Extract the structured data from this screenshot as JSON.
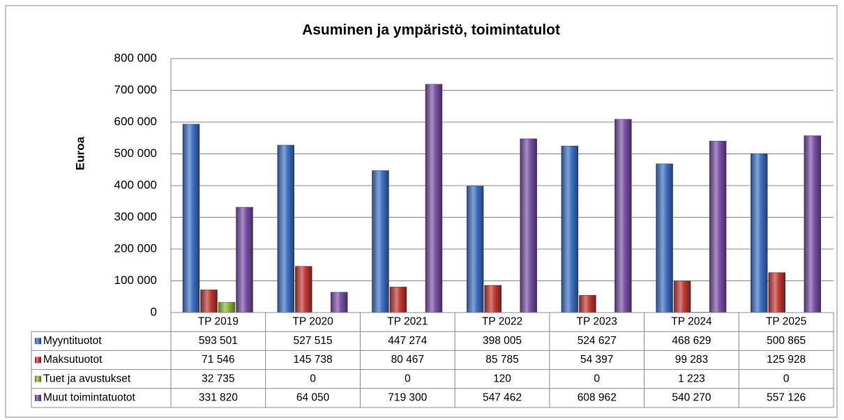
{
  "chart_data": {
    "type": "bar",
    "title": "Asuminen ja ympäristö, toimintatulot",
    "y_label": "Euroa",
    "categories": [
      "TP 2019",
      "TP 2020",
      "TP 2021",
      "TP 2022",
      "TP 2023",
      "TP 2024",
      "TP 2025"
    ],
    "series": [
      {
        "name": "Myyntituotot",
        "color": "#3f72c6",
        "values": [
          593501,
          527515,
          447274,
          398005,
          524627,
          468629,
          500865
        ],
        "value_labels": [
          "593 501",
          "527 515",
          "447 274",
          "398 005",
          "524 627",
          "468 629",
          "500 865"
        ]
      },
      {
        "name": "Maksutuotot",
        "color": "#c23a35",
        "values": [
          71546,
          145738,
          80467,
          85785,
          54397,
          99283,
          125928
        ],
        "value_labels": [
          "71 546",
          "145 738",
          "80 467",
          "85 785",
          "54 397",
          "99 283",
          "125 928"
        ]
      },
      {
        "name": "Tuet ja avustukset",
        "color": "#8fba3c",
        "values": [
          32735,
          0,
          0,
          120,
          0,
          1223,
          0
        ],
        "value_labels": [
          "32 735",
          "0",
          "0",
          "120",
          "0",
          "1 223",
          "0"
        ]
      },
      {
        "name": "Muut toimintatuotot",
        "color": "#7b52a8",
        "values": [
          331820,
          64050,
          719300,
          547462,
          608962,
          540270,
          557126
        ],
        "value_labels": [
          "331 820",
          "64 050",
          "719 300",
          "547 462",
          "608 962",
          "540 270",
          "557 126"
        ]
      }
    ],
    "ylim": [
      0,
      800000
    ],
    "yticks": [
      0,
      {
        "value": 100000,
        "label": "100 000"
      },
      {
        "value": 200000,
        "label": "200 000"
      },
      {
        "value": 300000,
        "label": "300 000"
      },
      {
        "value": 400000,
        "label": "400 000"
      },
      {
        "value": 500000,
        "label": "500 000"
      },
      {
        "value": 600000,
        "label": "600 000"
      },
      {
        "value": 700000,
        "label": "700 000"
      },
      {
        "value": 800000,
        "label": "800 000"
      }
    ],
    "grid": true,
    "data_table": true
  }
}
